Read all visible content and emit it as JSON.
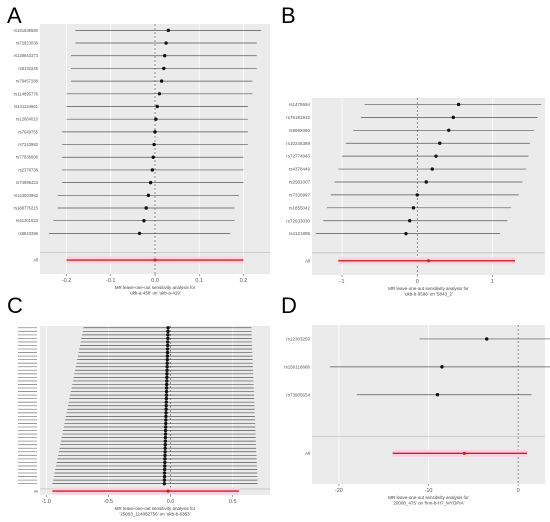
{
  "panels": [
    {
      "letter": "A",
      "chart_data": {
        "type": "forest",
        "snps": [
          "rs181536580",
          "rs72823036",
          "rs138643373",
          "rs8132245",
          "rs79457288",
          "rs114895776",
          "rs141134661",
          "rs12064010",
          "rs7649755",
          "rs7243982",
          "rs77636608",
          "rs2378736",
          "rs74996423",
          "rs143004982",
          "rs188776215",
          "rs41301623",
          "rs6843396",
          "All"
        ],
        "estimates": [
          0.03,
          0.025,
          0.022,
          0.02,
          0.015,
          0.01,
          0.005,
          0.002,
          0.0,
          -0.002,
          -0.004,
          -0.006,
          -0.01,
          -0.015,
          -0.02,
          -0.025,
          -0.035,
          0.0
        ],
        "lower": [
          -0.18,
          -0.18,
          -0.19,
          -0.19,
          -0.19,
          -0.2,
          -0.2,
          -0.2,
          -0.21,
          -0.21,
          -0.21,
          -0.21,
          -0.21,
          -0.22,
          -0.22,
          -0.23,
          -0.24,
          -0.2
        ],
        "upper": [
          0.24,
          0.23,
          0.23,
          0.23,
          0.22,
          0.22,
          0.21,
          0.21,
          0.21,
          0.21,
          0.2,
          0.2,
          0.2,
          0.19,
          0.18,
          0.18,
          0.17,
          0.2
        ],
        "xlim": [
          -0.26,
          0.26
        ],
        "xticks": [
          -0.2,
          -0.1,
          0.0,
          0.1,
          0.2
        ],
        "xtick_labels": [
          "-0.2",
          "-0.1",
          "0.0",
          "0.1",
          "0.2"
        ],
        "xlabel": [
          "MR leave-one-out sensitivity analysis for",
          "'ukb-a-458' on 'ukb-a-419'"
        ]
      }
    },
    {
      "letter": "B",
      "chart_data": {
        "type": "forest",
        "snps": [
          "rs1478694",
          "rs76181932",
          "rs9992060",
          "rs10248389",
          "rs72774943",
          "rs4378449",
          "rs2581007",
          "rs7330997",
          "rs1855042",
          "rs72633030",
          "rs4121899",
          "All"
        ],
        "estimates": [
          0.55,
          0.48,
          0.42,
          0.3,
          0.25,
          0.2,
          0.12,
          0.0,
          -0.05,
          -0.1,
          -0.15,
          0.15
        ],
        "lower": [
          -0.7,
          -0.75,
          -0.85,
          -0.95,
          -1.0,
          -1.05,
          -1.1,
          -1.15,
          -1.2,
          -1.25,
          -1.35,
          -1.05
        ],
        "upper": [
          1.65,
          1.6,
          1.55,
          1.5,
          1.48,
          1.45,
          1.4,
          1.35,
          1.25,
          1.2,
          1.1,
          1.3
        ],
        "xlim": [
          -1.4,
          1.7
        ],
        "xticks": [
          -1,
          0,
          1
        ],
        "xtick_labels": [
          "-1",
          "0",
          "1"
        ],
        "xlabel": [
          "MR leave-one-out sensitivity analysis for",
          "'ukb-b-9596' on '5843_2'"
        ]
      }
    },
    {
      "letter": "C",
      "chart_data": {
        "type": "forest",
        "n_snps": 45,
        "estimate_range": [
          -0.02,
          -0.05
        ],
        "lower_range": [
          -0.7,
          -0.95
        ],
        "upper_range": [
          0.65,
          0.7
        ],
        "all": {
          "estimate": -0.02,
          "lower": -0.95,
          "upper": 0.55
        },
        "xlim": [
          -1.05,
          0.8
        ],
        "xticks": [
          -1.0,
          -0.5,
          0.0,
          0.5
        ],
        "xtick_labels": [
          "-1.0",
          "-0.5",
          "0.0",
          "0.5"
        ],
        "xlabel": [
          "MR leave-one-out sensitivity analysis for",
          "'25003_114082756' on 'ukb-b-6353'"
        ]
      }
    },
    {
      "letter": "D",
      "chart_data": {
        "type": "forest",
        "snps": [
          "rs12303259",
          "rs150118686",
          "rs73905654",
          "All"
        ],
        "estimates": [
          -3.5,
          -8.5,
          -9.0,
          -6.0
        ],
        "lower": [
          -11.0,
          -21.0,
          -18.0,
          -14.0
        ],
        "upper": [
          5.5,
          5.5,
          1.5,
          1.0
        ],
        "xlim": [
          -23,
          3
        ],
        "xticks": [
          -20,
          -10,
          0
        ],
        "xtick_labels": [
          "-20",
          "-10",
          "0"
        ],
        "xlabel": [
          "MR leave-one-out sensitivity analysis for",
          "'20008_475' on 'finn-b-H7_MYOPIA'"
        ]
      }
    }
  ]
}
